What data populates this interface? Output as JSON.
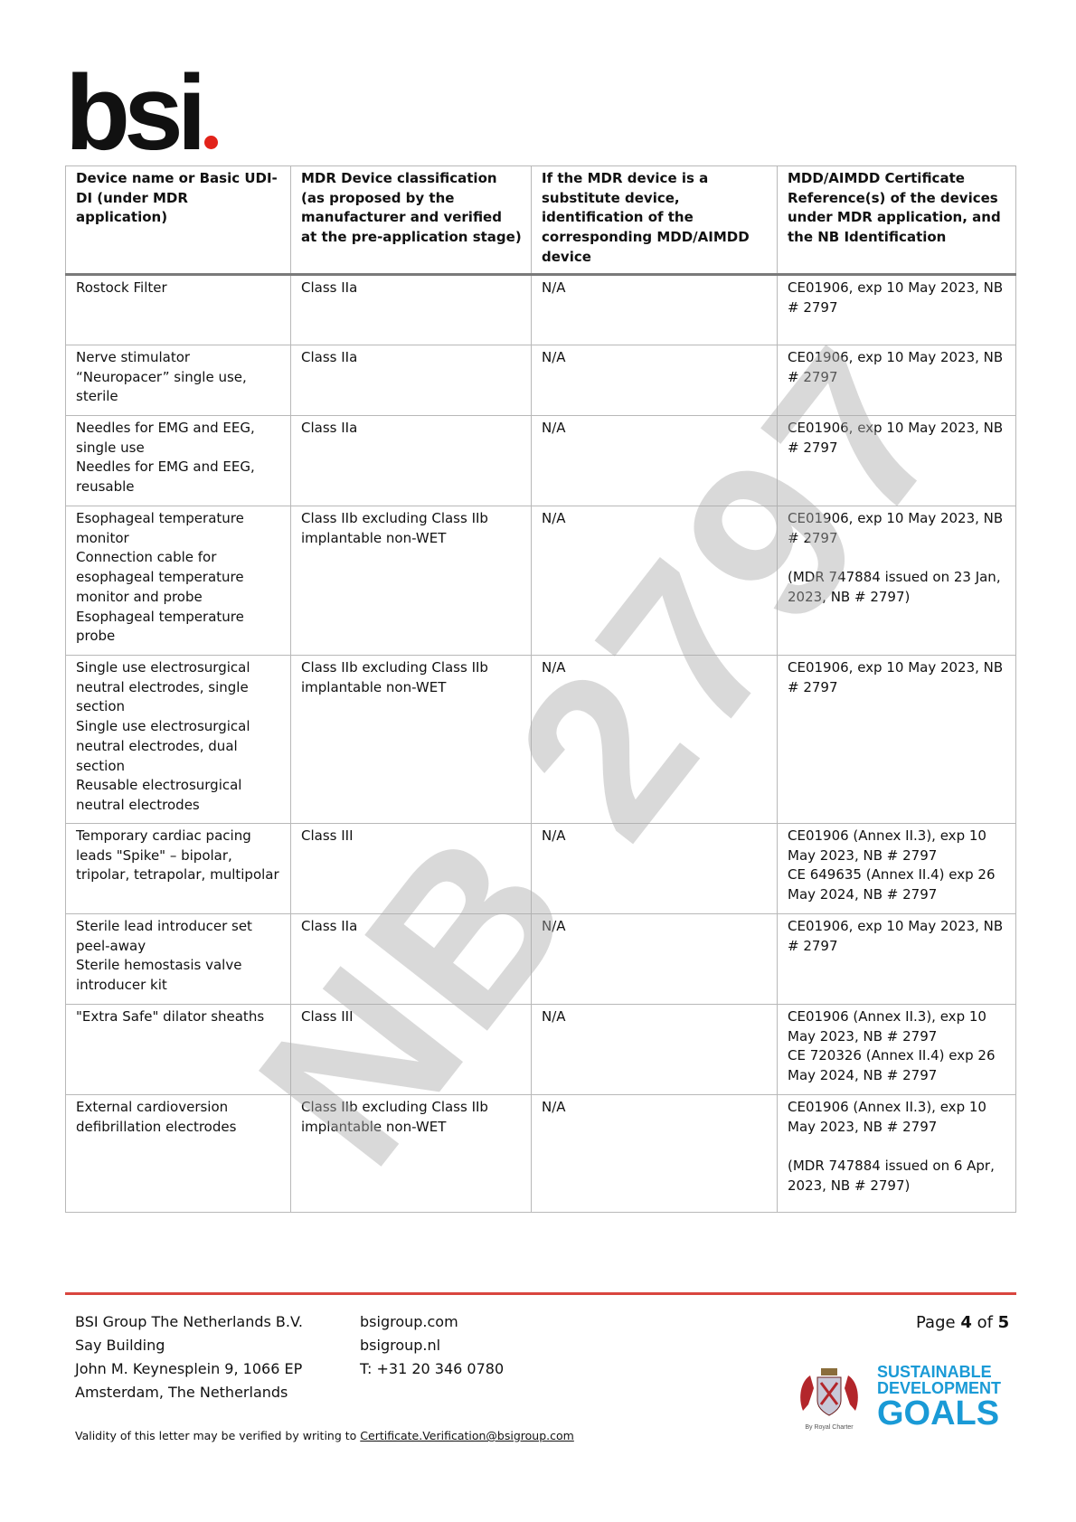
{
  "logo": {
    "text": "bsi",
    "accent": "#e2231a"
  },
  "watermark": "NB 2797",
  "table": {
    "headers": [
      "Device name or Basic UDI-DI (under MDR application)",
      "MDR Device classification (as proposed by the manufacturer and verified at the pre-application stage)",
      "If the MDR device is a substitute device, identification of the corresponding MDD/AIMDD device",
      "MDD/AIMDD Certificate Reference(s) of the devices under MDR application, and the NB Identification"
    ],
    "rows": [
      {
        "device": "Rostock Filter",
        "class": "Class IIa",
        "substitute": "N/A",
        "certificate": "CE01906, exp 10 May 2023, NB # 2797"
      },
      {
        "device": "Nerve stimulator “Neuropacer” single use, sterile",
        "class": "Class IIa",
        "substitute": "N/A",
        "certificate": "CE01906, exp 10 May 2023, NB # 2797"
      },
      {
        "device": "Needles for EMG and EEG, single use\nNeedles for EMG and EEG, reusable",
        "class": "Class IIa",
        "substitute": "N/A",
        "certificate": "CE01906, exp 10 May 2023, NB # 2797"
      },
      {
        "device": "Esophageal temperature monitor\nConnection cable for esophageal temperature monitor and probe\nEsophageal temperature probe",
        "class": "Class IIb excluding Class IIb implantable non-WET",
        "substitute": "N/A",
        "certificate": "CE01906, exp 10 May 2023, NB # 2797\n\n(MDR 747884 issued on 23 Jan, 2023, NB # 2797)"
      },
      {
        "device": "Single use electrosurgical neutral electrodes, single section\nSingle use electrosurgical neutral electrodes, dual section\nReusable electrosurgical neutral electrodes",
        "class": "Class IIb excluding Class IIb implantable non-WET",
        "substitute": "N/A",
        "certificate": "CE01906, exp 10 May 2023, NB # 2797"
      },
      {
        "device": "Temporary cardiac pacing leads \"Spike\" – bipolar, tripolar, tetrapolar, multipolar",
        "class": "Class III",
        "substitute": "N/A",
        "certificate": "CE01906 (Annex II.3), exp 10 May 2023, NB # 2797\nCE 649635 (Annex II.4) exp 26 May 2024, NB # 2797"
      },
      {
        "device": "Sterile lead introducer set peel-away\nSterile hemostasis valve introducer kit",
        "class": "Class IIa",
        "substitute": "N/A",
        "certificate": "CE01906, exp 10 May 2023, NB # 2797"
      },
      {
        "device": "\"Extra Safe\" dilator sheaths",
        "class": "Class III",
        "substitute": "N/A",
        "certificate": "CE01906 (Annex II.3), exp 10 May 2023, NB # 2797\nCE 720326 (Annex II.4) exp 26 May 2024, NB # 2797"
      },
      {
        "device": "External cardioversion defibrillation electrodes",
        "class": "Class IIb excluding Class IIb implantable non-WET",
        "substitute": "N/A",
        "certificate": "CE01906 (Annex II.3), exp 10 May 2023, NB # 2797\n\n(MDR 747884 issued on 6 Apr, 2023, NB # 2797)"
      }
    ]
  },
  "footer": {
    "address": [
      "BSI Group The Netherlands B.V.",
      "Say Building",
      "John M. Keynesplein 9, 1066 EP",
      "Amsterdam, The Netherlands"
    ],
    "contact": [
      "bsigroup.com",
      "bsigroup.nl",
      "T: +31 20 346 0780"
    ],
    "page": {
      "prefix": "Page ",
      "current": "4",
      "mid": " of ",
      "total": "5"
    },
    "validity_text": "Validity of this letter may be verified by writing to ",
    "validity_email": "Certificate.Verification@bsigroup.com",
    "crest_caption": "By Royal Charter",
    "sdg": [
      "SUSTAINABLE",
      "DEVELOPMENT",
      "GOALS"
    ],
    "rule_color": "#d9463f"
  }
}
